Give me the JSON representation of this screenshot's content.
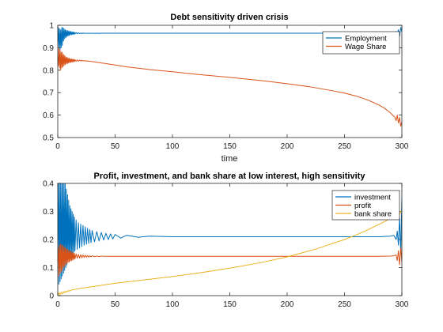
{
  "colors": {
    "blue": "#0072BD",
    "orange": "#D95319",
    "yellow": "#EDB120"
  },
  "chart_data": [
    {
      "type": "line",
      "title": "Debt sensitivity driven crisis",
      "xlabel": "time",
      "ylabel": "",
      "xlim": [
        0,
        300
      ],
      "ylim": [
        0.5,
        1
      ],
      "xticks": [
        "0",
        "50",
        "100",
        "150",
        "200",
        "250",
        "300"
      ],
      "yticks": [
        "0.5",
        "0.6",
        "0.7",
        "0.8",
        "0.9",
        "1"
      ],
      "legend_position": "top-right",
      "grid": false,
      "series": [
        {
          "name": "Employment",
          "color": "#0072BD",
          "x": [
            0,
            0.5,
            1,
            1.5,
            2,
            2.5,
            3,
            3.5,
            4,
            4.5,
            5,
            5.5,
            6,
            6.5,
            7,
            7.5,
            8,
            8.5,
            9,
            9.5,
            10,
            10.5,
            11,
            11.5,
            12,
            12.5,
            13,
            13.5,
            14,
            14.5,
            15,
            16,
            17,
            18,
            19,
            20,
            21,
            22,
            23,
            24,
            25,
            26,
            27,
            28,
            29,
            30,
            32,
            34,
            36,
            38,
            40,
            45,
            50,
            60,
            80,
            100,
            150,
            200,
            250,
            280,
            290,
            293,
            295,
            296,
            297,
            298,
            299,
            300
          ],
          "y": [
            0.92,
            0.99,
            0.9,
            0.985,
            0.89,
            0.98,
            0.9,
            0.99,
            0.91,
            0.99,
            0.93,
            0.985,
            0.94,
            0.98,
            0.945,
            0.978,
            0.95,
            0.976,
            0.952,
            0.975,
            0.955,
            0.973,
            0.957,
            0.972,
            0.958,
            0.971,
            0.959,
            0.97,
            0.96,
            0.969,
            0.961,
            0.968,
            0.962,
            0.967,
            0.963,
            0.966,
            0.963,
            0.966,
            0.964,
            0.965,
            0.964,
            0.965,
            0.964,
            0.965,
            0.964,
            0.965,
            0.964,
            0.965,
            0.964,
            0.965,
            0.965,
            0.965,
            0.965,
            0.965,
            0.965,
            0.965,
            0.965,
            0.965,
            0.965,
            0.965,
            0.966,
            0.967,
            0.972,
            0.96,
            0.98,
            0.95,
            0.99,
            0.97
          ]
        },
        {
          "name": "Wage Share",
          "color": "#D95319",
          "x": [
            0,
            0.5,
            1,
            1.5,
            2,
            2.5,
            3,
            3.5,
            4,
            4.5,
            5,
            5.5,
            6,
            6.5,
            7,
            7.5,
            8,
            8.5,
            9,
            9.5,
            10,
            10.5,
            11,
            11.5,
            12,
            12.5,
            13,
            13.5,
            14,
            14.5,
            15,
            16,
            17,
            18,
            19,
            20,
            21,
            22,
            23,
            24,
            25,
            26,
            27,
            28,
            29,
            30,
            32,
            34,
            36,
            38,
            40,
            45,
            50,
            60,
            80,
            100,
            120,
            150,
            180,
            200,
            220,
            240,
            250,
            260,
            270,
            280,
            285,
            290,
            292,
            294,
            295,
            296,
            297,
            298,
            299,
            300
          ],
          "y": [
            0.86,
            0.82,
            0.9,
            0.81,
            0.89,
            0.8,
            0.88,
            0.81,
            0.88,
            0.815,
            0.87,
            0.82,
            0.865,
            0.825,
            0.86,
            0.828,
            0.857,
            0.83,
            0.855,
            0.832,
            0.853,
            0.834,
            0.851,
            0.835,
            0.85,
            0.836,
            0.849,
            0.837,
            0.848,
            0.838,
            0.847,
            0.839,
            0.846,
            0.84,
            0.845,
            0.841,
            0.844,
            0.841,
            0.843,
            0.841,
            0.842,
            0.84,
            0.841,
            0.839,
            0.84,
            0.838,
            0.837,
            0.835,
            0.834,
            0.832,
            0.831,
            0.827,
            0.823,
            0.815,
            0.803,
            0.793,
            0.782,
            0.768,
            0.752,
            0.74,
            0.726,
            0.708,
            0.698,
            0.685,
            0.668,
            0.645,
            0.63,
            0.61,
            0.6,
            0.59,
            0.575,
            0.6,
            0.565,
            0.59,
            0.55,
            0.57
          ]
        }
      ]
    },
    {
      "type": "line",
      "title": "Profit, investment, and bank share at low interest, high sensitivity",
      "xlabel": "",
      "ylabel": "",
      "xlim": [
        0,
        300
      ],
      "ylim": [
        0,
        0.4
      ],
      "xticks": [
        "0",
        "50",
        "100",
        "150",
        "200",
        "250",
        "300"
      ],
      "yticks": [
        "0",
        "0.1",
        "0.2",
        "0.3",
        "0.4"
      ],
      "legend_position": "top-right",
      "grid": false,
      "series": [
        {
          "name": "investment",
          "color": "#0072BD",
          "x": [
            0,
            0.5,
            1,
            1.5,
            2,
            2.5,
            3,
            3.5,
            4,
            4.5,
            5,
            5.5,
            6,
            6.5,
            7,
            7.5,
            8,
            8.5,
            9,
            9.5,
            10,
            10.5,
            11,
            11.5,
            12,
            12.5,
            13,
            13.5,
            14,
            14.5,
            15,
            16,
            17,
            18,
            19,
            20,
            21,
            22,
            23,
            24,
            25,
            26,
            27,
            28,
            29,
            30,
            32,
            34,
            36,
            38,
            40,
            42,
            44,
            46,
            48,
            50,
            55,
            60,
            70,
            80,
            100,
            150,
            200,
            250,
            280,
            290,
            293,
            295,
            296,
            297,
            298,
            299,
            300
          ],
          "y": [
            0.2,
            0.4,
            0.04,
            0.4,
            0.05,
            0.4,
            0.06,
            0.4,
            0.07,
            0.4,
            0.08,
            0.4,
            0.09,
            0.4,
            0.1,
            0.38,
            0.11,
            0.36,
            0.12,
            0.34,
            0.13,
            0.32,
            0.14,
            0.31,
            0.145,
            0.3,
            0.15,
            0.29,
            0.155,
            0.28,
            0.16,
            0.27,
            0.165,
            0.26,
            0.17,
            0.255,
            0.175,
            0.25,
            0.18,
            0.245,
            0.183,
            0.24,
            0.186,
            0.235,
            0.189,
            0.232,
            0.192,
            0.228,
            0.195,
            0.225,
            0.198,
            0.222,
            0.2,
            0.22,
            0.202,
            0.218,
            0.205,
            0.215,
            0.208,
            0.212,
            0.21,
            0.21,
            0.21,
            0.21,
            0.21,
            0.212,
            0.215,
            0.2,
            0.23,
            0.18,
            0.28,
            0.15,
            0.35
          ]
        },
        {
          "name": "profit",
          "color": "#D95319",
          "x": [
            0,
            0.5,
            1,
            1.5,
            2,
            2.5,
            3,
            3.5,
            4,
            4.5,
            5,
            5.5,
            6,
            6.5,
            7,
            7.5,
            8,
            8.5,
            9,
            9.5,
            10,
            10.5,
            11,
            11.5,
            12,
            12.5,
            13,
            13.5,
            14,
            14.5,
            15,
            16,
            17,
            18,
            19,
            20,
            21,
            22,
            23,
            24,
            25,
            26,
            27,
            28,
            29,
            30,
            32,
            34,
            36,
            38,
            40,
            45,
            50,
            60,
            80,
            100,
            150,
            200,
            250,
            280,
            290,
            293,
            295,
            296,
            297,
            298,
            299,
            300
          ],
          "y": [
            0.12,
            0.17,
            0.07,
            0.18,
            0.08,
            0.185,
            0.085,
            0.18,
            0.09,
            0.178,
            0.1,
            0.175,
            0.105,
            0.17,
            0.11,
            0.168,
            0.115,
            0.165,
            0.118,
            0.162,
            0.12,
            0.16,
            0.123,
            0.158,
            0.125,
            0.155,
            0.127,
            0.153,
            0.129,
            0.151,
            0.131,
            0.149,
            0.133,
            0.147,
            0.134,
            0.146,
            0.135,
            0.145,
            0.136,
            0.144,
            0.137,
            0.143,
            0.137,
            0.142,
            0.138,
            0.142,
            0.139,
            0.141,
            0.139,
            0.141,
            0.14,
            0.14,
            0.14,
            0.14,
            0.14,
            0.14,
            0.14,
            0.14,
            0.14,
            0.14,
            0.141,
            0.142,
            0.145,
            0.125,
            0.16,
            0.11,
            0.17,
            0.12
          ]
        },
        {
          "name": "bank share",
          "color": "#EDB120",
          "x": [
            0,
            1,
            2,
            3,
            4,
            5,
            6,
            7,
            8,
            9,
            10,
            12,
            15,
            20,
            30,
            40,
            50,
            75,
            100,
            125,
            150,
            175,
            200,
            225,
            250,
            260,
            270,
            280,
            285,
            290,
            292,
            294,
            295,
            296,
            297,
            298,
            299,
            300
          ],
          "y": [
            0,
            0.01,
            0.003,
            0.012,
            0.006,
            0.014,
            0.01,
            0.016,
            0.013,
            0.018,
            0.016,
            0.02,
            0.022,
            0.026,
            0.032,
            0.038,
            0.044,
            0.056,
            0.068,
            0.082,
            0.098,
            0.116,
            0.138,
            0.166,
            0.2,
            0.216,
            0.234,
            0.254,
            0.264,
            0.276,
            0.28,
            0.285,
            0.29,
            0.284,
            0.295,
            0.288,
            0.3,
            0.297
          ]
        }
      ]
    }
  ]
}
